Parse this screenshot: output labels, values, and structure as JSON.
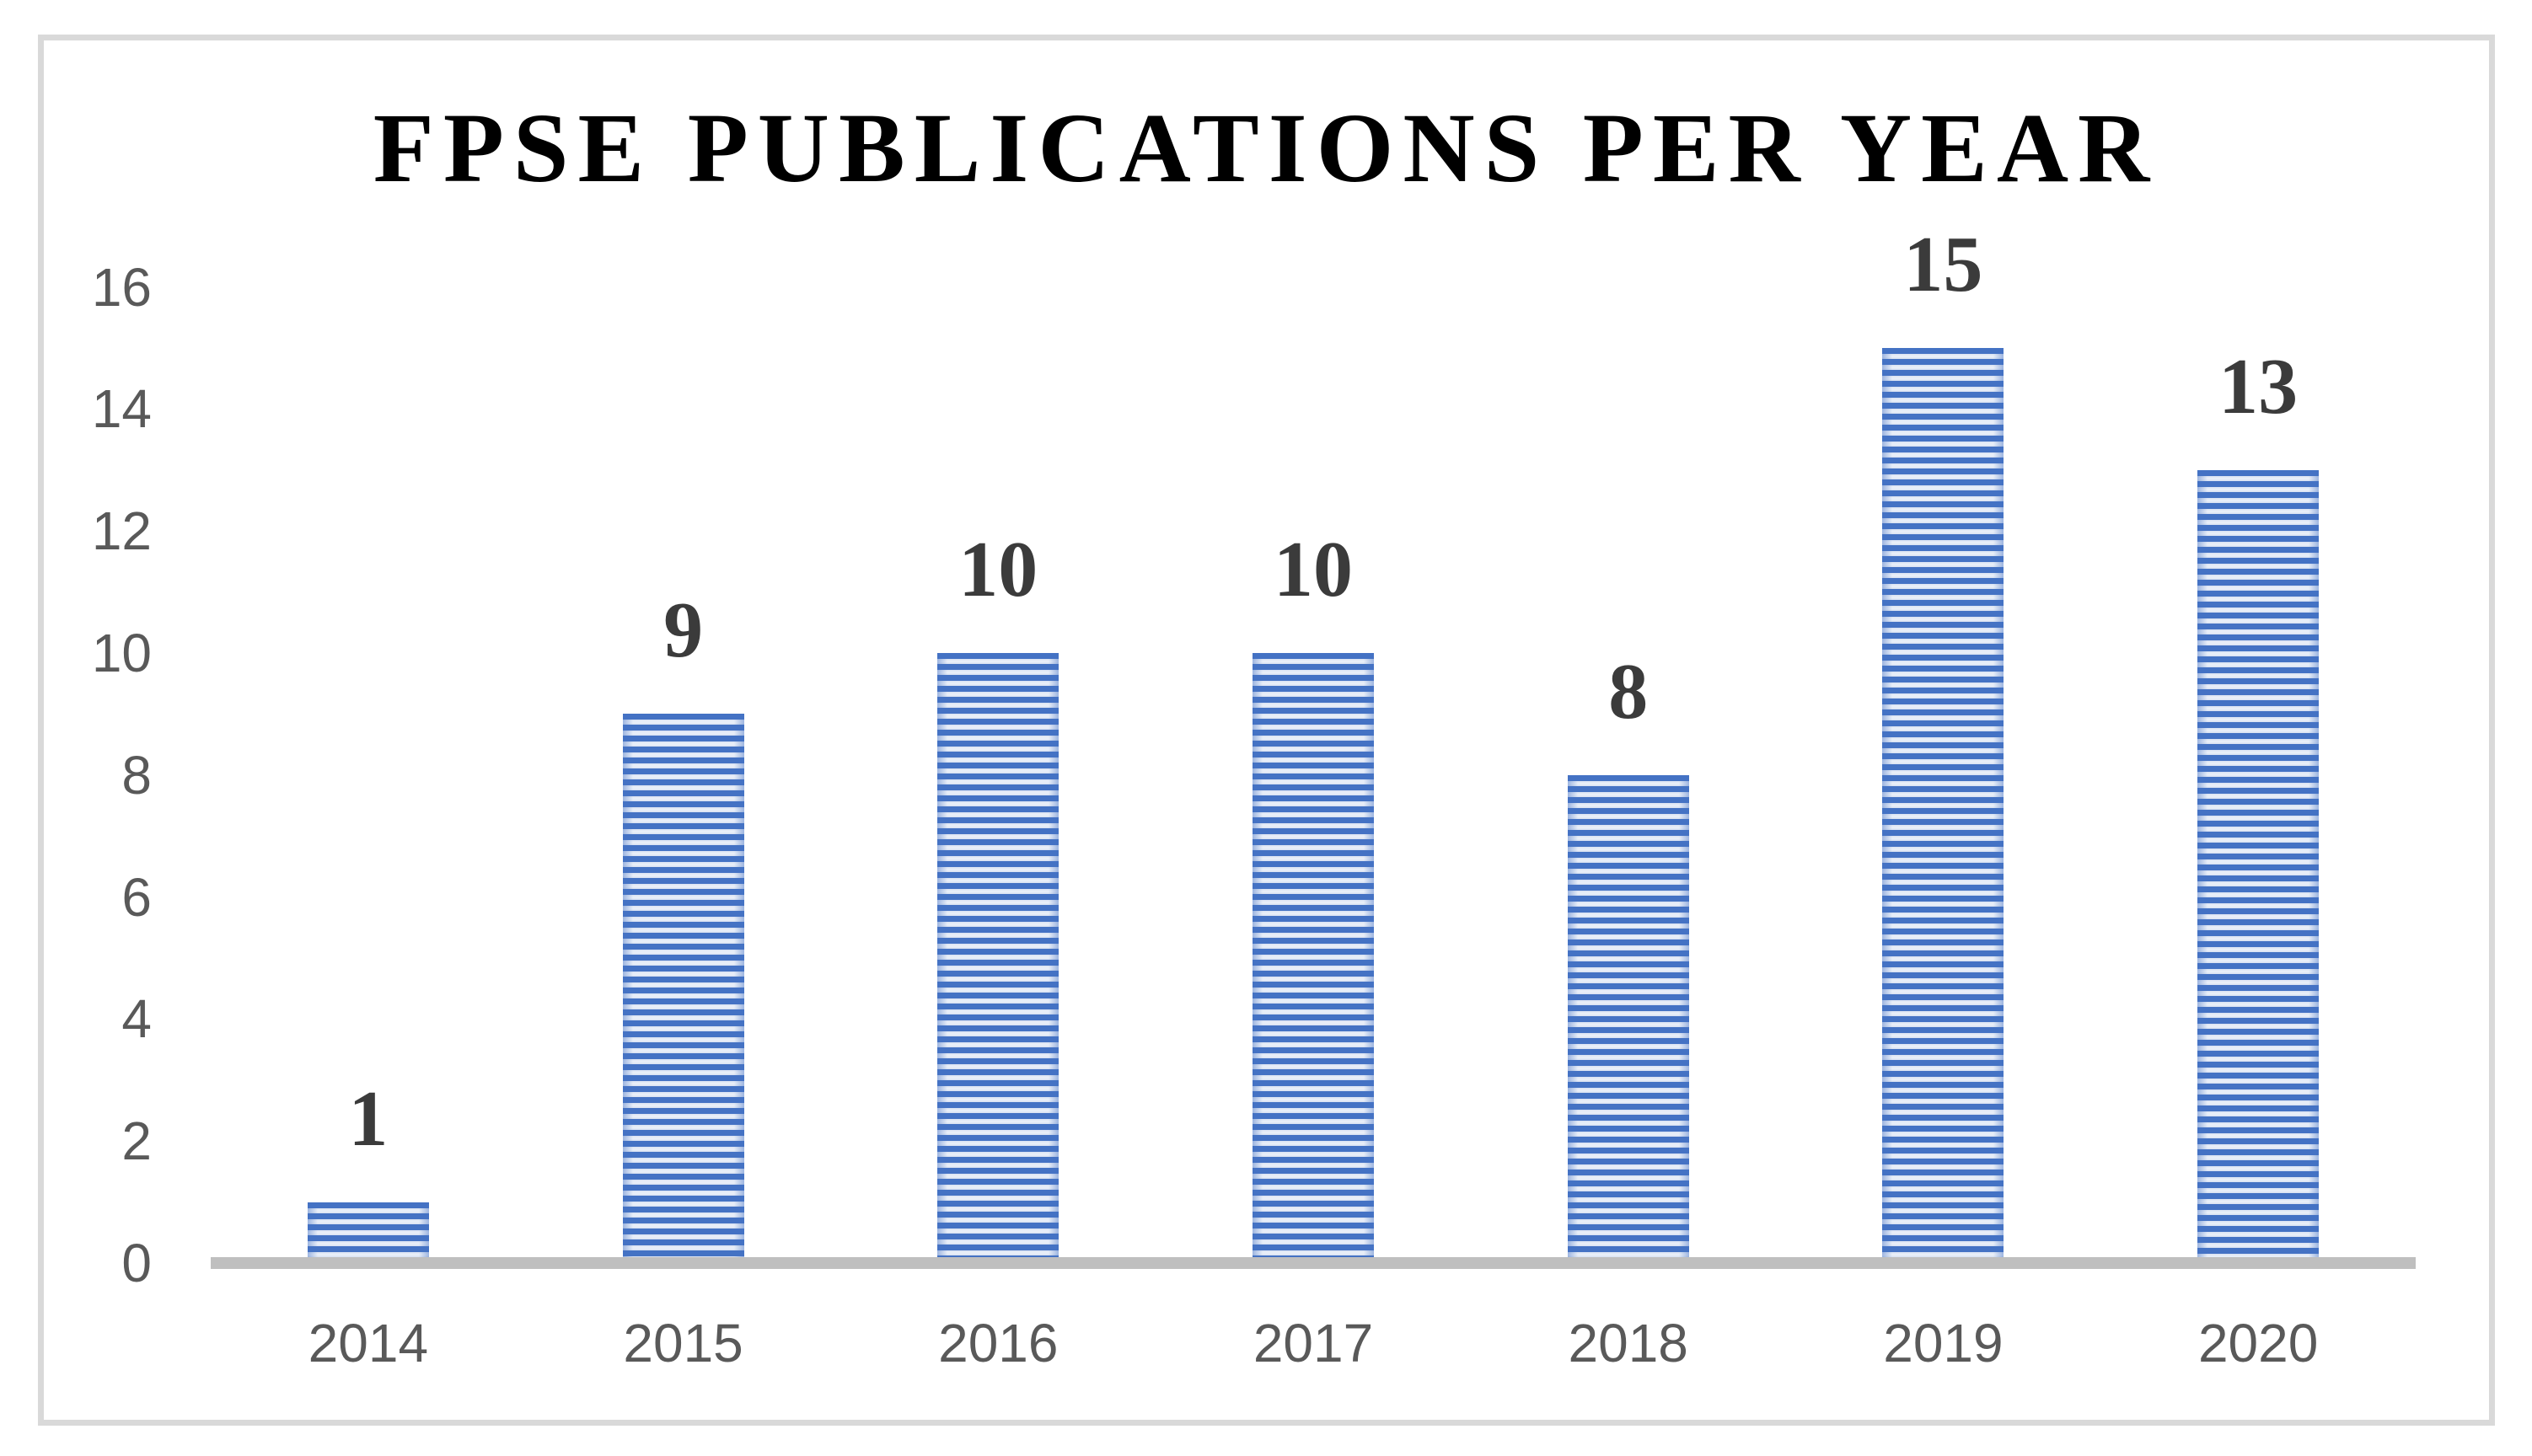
{
  "chart_data": {
    "type": "bar",
    "title": "FPSE PUBLICATIONS PER YEAR",
    "categories": [
      "2014",
      "2015",
      "2016",
      "2017",
      "2018",
      "2019",
      "2020"
    ],
    "values": [
      1,
      9,
      10,
      10,
      8,
      15,
      13
    ],
    "data_labels": [
      "1",
      "9",
      "10",
      "10",
      "8",
      "15",
      "13"
    ],
    "xlabel": "",
    "ylabel": "",
    "ylim": [
      0,
      16
    ],
    "yticks": [
      0,
      2,
      4,
      6,
      8,
      10,
      12,
      14,
      16
    ],
    "grid": "off",
    "legend": "none",
    "bar_color": "#4472C4",
    "bar_stripe_light_color": "#D9E2F2",
    "axis_line_color": "#BFBFBF",
    "tick_label_color": "#595959",
    "value_label_color": "#3B3B3B",
    "title_color": "#000000",
    "frame_border_color": "#D9D9D9"
  }
}
